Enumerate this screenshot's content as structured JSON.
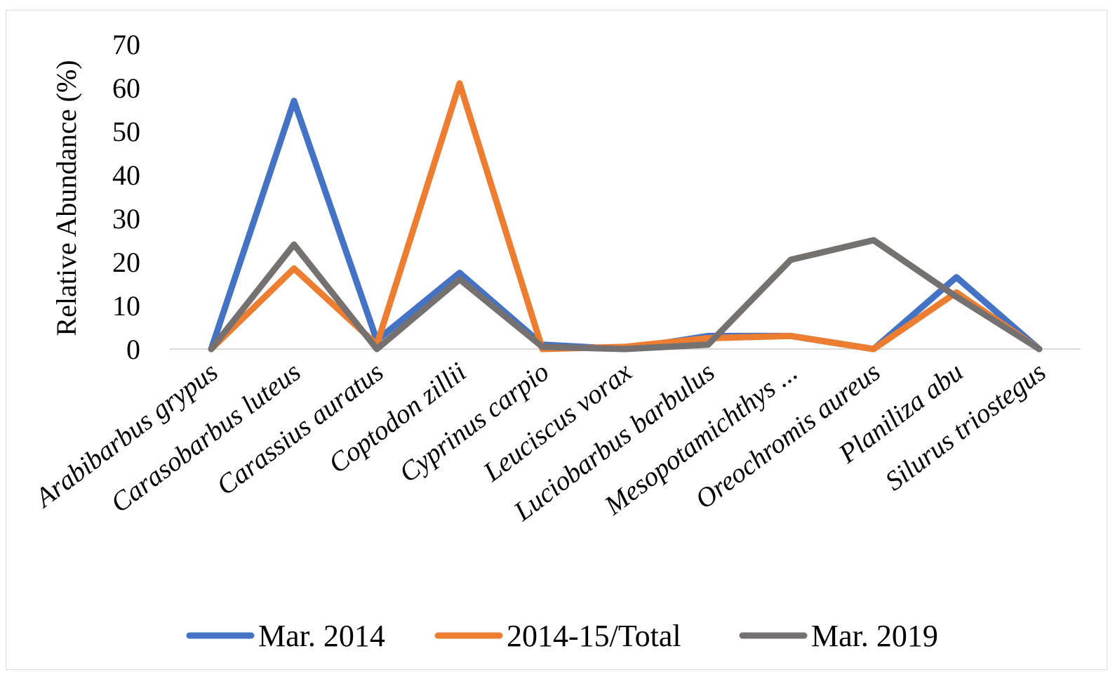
{
  "chart_data": {
    "type": "line",
    "title": "",
    "xlabel": "",
    "ylabel": "Relative Abundance (%)",
    "ylim": [
      0,
      70
    ],
    "yticks": [
      0,
      10,
      20,
      30,
      40,
      50,
      60,
      70
    ],
    "grid": false,
    "legend_position": "bottom",
    "categories": [
      "Arabibarbus grypus",
      "Carasobarbus luteus",
      "Carassius auratus",
      "Coptodon zillii",
      "Cyprinus carpio",
      "Leuciscus vorax",
      "Luciobarbus barbulus",
      "Mesopotamichthys ...",
      "Oreochromis aureus",
      "Planiliza abu",
      "Silurus triostegus"
    ],
    "series": [
      {
        "name": "Mar. 2014",
        "color": "#4472C4",
        "values": [
          0,
          57,
          2,
          17.5,
          1,
          0,
          3,
          3,
          0,
          16.5,
          0
        ]
      },
      {
        "name": "2014-15/Total",
        "color": "#ED7D31",
        "values": [
          0,
          18.5,
          1,
          61,
          0,
          0.5,
          2.5,
          3,
          0,
          13,
          0
        ]
      },
      {
        "name": "Mar. 2019",
        "color": "#767171",
        "values": [
          0,
          24,
          0,
          16,
          0.5,
          0,
          1,
          20.5,
          25,
          12,
          0
        ]
      }
    ]
  }
}
